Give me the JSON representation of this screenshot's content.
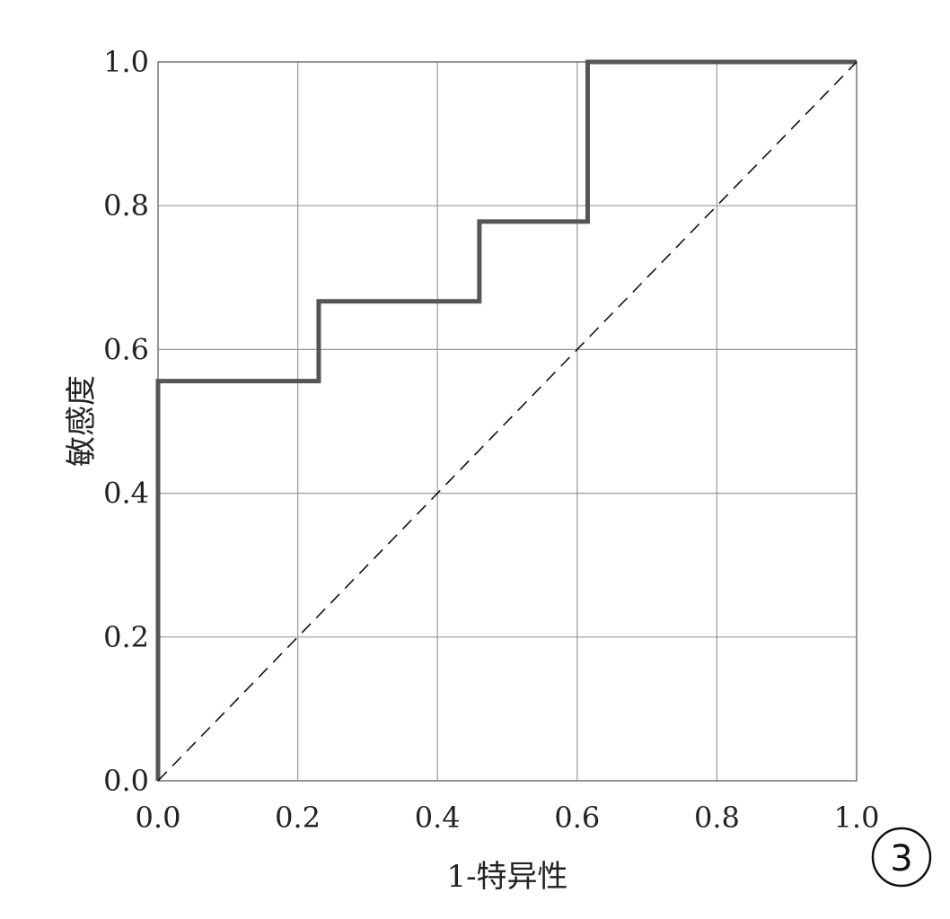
{
  "chart_data": {
    "type": "line",
    "title": "",
    "xlabel": "1-特异性",
    "ylabel": "敏感度",
    "xlim": [
      0,
      1
    ],
    "ylim": [
      0,
      1
    ],
    "grid": true,
    "x_ticks": [
      "0.0",
      "0.2",
      "0.4",
      "0.6",
      "0.8",
      "1.0"
    ],
    "y_ticks": [
      "0.0",
      "0.2",
      "0.4",
      "0.6",
      "0.8",
      "1.0"
    ],
    "series": [
      {
        "style": "solid-step",
        "color": "#555555",
        "x": [
          0.0,
          0.0,
          0.23,
          0.23,
          0.46,
          0.46,
          0.615,
          0.615,
          1.0
        ],
        "y": [
          0.0,
          0.556,
          0.556,
          0.667,
          0.667,
          0.778,
          0.778,
          1.0,
          1.0
        ]
      },
      {
        "style": "dashed-reference",
        "color": "#111111",
        "x": [
          0.0,
          1.0
        ],
        "y": [
          0.0,
          1.0
        ]
      }
    ],
    "panel_label": "3"
  }
}
